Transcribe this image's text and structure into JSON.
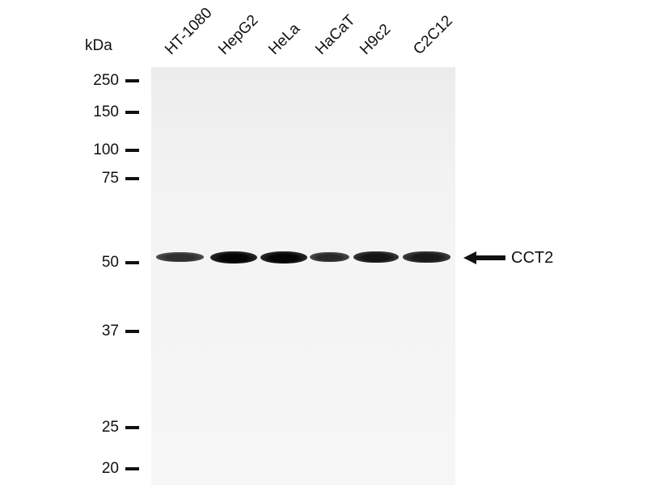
{
  "unit_label": "kDa",
  "markers": [
    {
      "label": "250",
      "kda": 250
    },
    {
      "label": "150",
      "kda": 150
    },
    {
      "label": "100",
      "kda": 100
    },
    {
      "label": "75",
      "kda": 75
    },
    {
      "label": "50",
      "kda": 50
    },
    {
      "label": "37",
      "kda": 37
    },
    {
      "label": "25",
      "kda": 25
    },
    {
      "label": "20",
      "kda": 20
    }
  ],
  "lanes": [
    {
      "label": "HT-1080",
      "band_intensity": 0.6
    },
    {
      "label": "HepG2",
      "band_intensity": 1.0
    },
    {
      "label": "HeLa",
      "band_intensity": 1.0
    },
    {
      "label": "HaCaT",
      "band_intensity": 0.65
    },
    {
      "label": "H9c2",
      "band_intensity": 0.85
    },
    {
      "label": "C2C12",
      "band_intensity": 0.8
    }
  ],
  "target": {
    "label": "CCT2",
    "arrow_icon": "arrow-left-icon"
  }
}
